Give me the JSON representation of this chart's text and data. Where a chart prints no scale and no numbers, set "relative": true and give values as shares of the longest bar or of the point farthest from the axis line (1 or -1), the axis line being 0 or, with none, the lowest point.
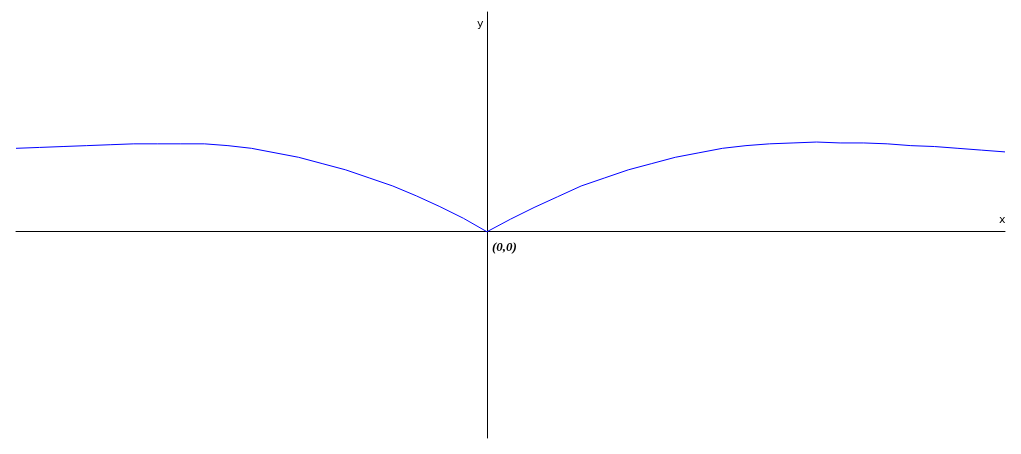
{
  "chart_data": {
    "type": "line",
    "relative": true,
    "xlabel": "x",
    "annotations": [
      "y",
      "(0,0)"
    ],
    "marker": "none",
    "line_style": "solid",
    "categories": [
      null,
      null,
      null,
      null,
      null,
      null,
      null,
      null,
      null,
      null,
      null,
      null,
      null,
      null,
      null,
      null,
      null,
      null,
      null,
      null,
      null,
      null,
      null,
      null,
      null,
      null,
      null,
      null,
      null,
      null,
      null,
      null,
      null,
      null,
      null,
      null,
      null,
      null,
      null,
      null,
      null,
      null,
      null
    ],
    "series": [
      {
        "color": "#0000ff",
        "values": [
          0.93,
          0.94,
          0.95,
          0.96,
          0.97,
          0.98,
          0.98,
          0.98,
          0.98,
          0.96,
          0.93,
          0.88,
          0.83,
          0.76,
          0.69,
          0.6,
          0.51,
          0.4,
          0.28,
          0.15,
          0,
          0.14,
          0.27,
          0.39,
          0.51,
          0.6,
          0.69,
          0.76,
          0.83,
          0.88,
          0.93,
          0.96,
          0.98,
          0.99,
          1,
          0.99,
          0.99,
          0.98,
          0.96,
          0.95,
          0.93,
          0.91,
          0.89
        ]
      }
    ]
  }
}
